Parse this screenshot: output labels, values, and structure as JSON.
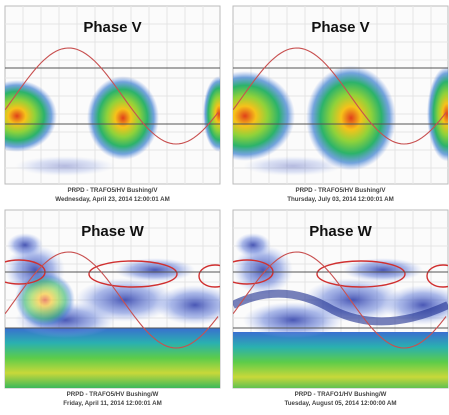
{
  "panels": [
    {
      "title": "Phase V",
      "caption_line1": "PRPD - TRAFO5/HV Bushing/V",
      "caption_line2": "Wednesday, April 23, 2014 12:00:01 AM"
    },
    {
      "title": "Phase V",
      "caption_line1": "PRPD - TRAFO5/HV Bushing/V",
      "caption_line2": "Thursday, July 03, 2014 12:00:01 AM"
    },
    {
      "title": "Phase W",
      "caption_line1": "PRPD - TRAFO5/HV Bushing/W",
      "caption_line2": "Friday, April 11, 2014 12:00:01 AM"
    },
    {
      "title": "Phase W",
      "caption_line1": "PRPD - TRAFO1/HV Bushing/W",
      "caption_line2": "Tuesday, August 05, 2014 12:00:00 AM"
    }
  ]
}
